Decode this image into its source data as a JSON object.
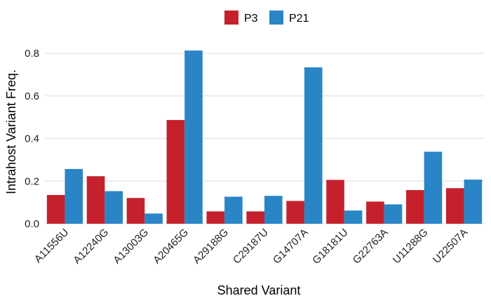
{
  "chart_data": {
    "type": "bar",
    "title": "",
    "xlabel": "Shared Variant",
    "ylabel": "Intrahost Variant Freq.",
    "categories": [
      "A11556U",
      "A12240G",
      "A13003G",
      "A20465G",
      "A29188G",
      "C29187U",
      "G14707A",
      "G18181U",
      "G22763A",
      "U11288G",
      "U22507A"
    ],
    "series": [
      {
        "name": "P3",
        "color": "#c4212c",
        "values": [
          0.135,
          0.223,
          0.121,
          0.487,
          0.058,
          0.058,
          0.107,
          0.206,
          0.104,
          0.158,
          0.167
        ]
      },
      {
        "name": "P21",
        "color": "#2a85c6",
        "values": [
          0.257,
          0.153,
          0.048,
          0.813,
          0.127,
          0.131,
          0.734,
          0.062,
          0.091,
          0.338,
          0.207
        ]
      }
    ],
    "ylim": [
      0,
      0.84
    ],
    "yticks": [
      "0.0",
      "0.2",
      "0.4",
      "0.6",
      "0.8"
    ],
    "grid": true,
    "legend_position": "top"
  }
}
